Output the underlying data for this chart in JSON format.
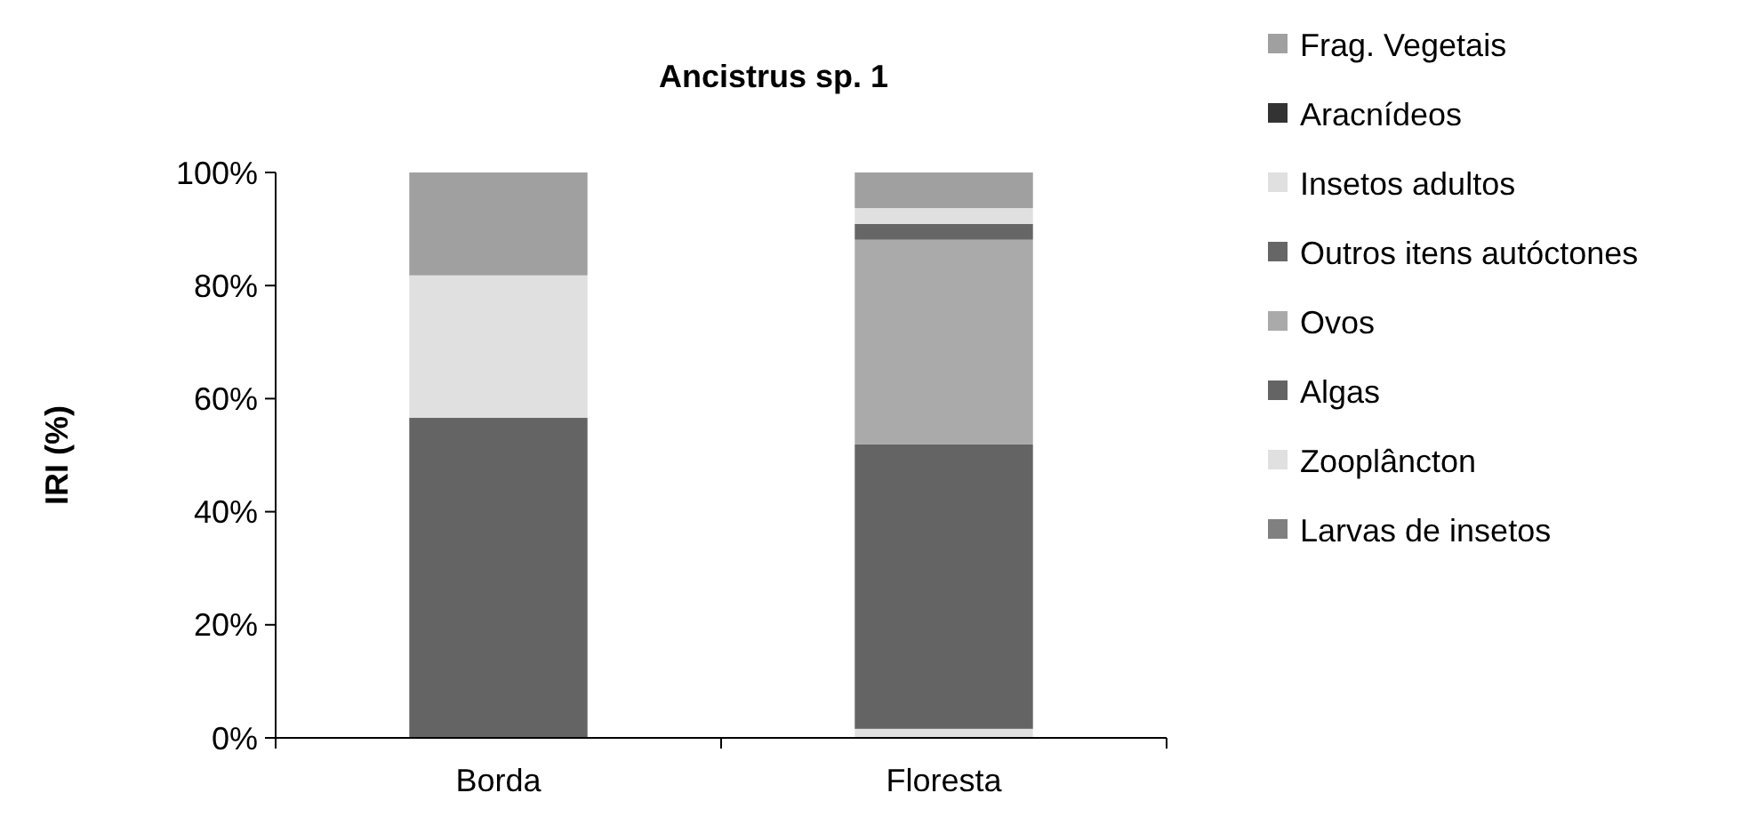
{
  "chart_data": {
    "type": "bar",
    "stacked": true,
    "title": "Ancistrus sp. 1",
    "ylabel": "IRI (%)",
    "categories": [
      "Borda",
      "Floresta"
    ],
    "series": [
      {
        "name": "Larvas de insetos",
        "color": "#808080",
        "values": [
          0,
          0
        ]
      },
      {
        "name": "Zooplâncton",
        "color": "#e0e0e0",
        "values": [
          0,
          1.6
        ]
      },
      {
        "name": "Algas",
        "color": "#646464",
        "values": [
          56.6,
          50.3
        ]
      },
      {
        "name": "Ovos",
        "color": "#aaaaaa",
        "values": [
          0,
          36.2
        ]
      },
      {
        "name": "Outros itens autóctones",
        "color": "#666666",
        "values": [
          0,
          2.8
        ]
      },
      {
        "name": "Insetos adultos",
        "color": "#e0e0e0",
        "values": [
          25.2,
          2.8
        ]
      },
      {
        "name": "Aracnídeos",
        "color": "#333333",
        "values": [
          0,
          0
        ]
      },
      {
        "name": "Frag. Vegetais",
        "color": "#a0a0a0",
        "values": [
          18.2,
          6.3
        ]
      }
    ],
    "ylim": [
      0,
      100
    ],
    "yticks": [
      {
        "value": 0,
        "label": "0%"
      },
      {
        "value": 20,
        "label": "20%"
      },
      {
        "value": 40,
        "label": "40%"
      },
      {
        "value": 60,
        "label": "60%"
      },
      {
        "value": 80,
        "label": "80%"
      },
      {
        "value": 100,
        "label": "100%"
      }
    ],
    "legend": "right",
    "grid": false
  }
}
